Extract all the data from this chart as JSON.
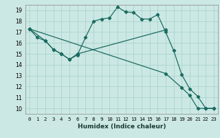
{
  "xlabel": "Humidex (Indice chaleur)",
  "bg_color": "#cce8e4",
  "grid_color": "#aad4cc",
  "line_color": "#1a6b60",
  "xlim": [
    -0.5,
    23.5
  ],
  "ylim": [
    9.5,
    19.5
  ],
  "xticks": [
    0,
    1,
    2,
    3,
    4,
    5,
    6,
    7,
    8,
    9,
    10,
    11,
    12,
    13,
    14,
    15,
    16,
    17,
    18,
    19,
    20,
    21,
    22,
    23
  ],
  "yticks": [
    10,
    11,
    12,
    13,
    14,
    15,
    16,
    17,
    18,
    19
  ],
  "line1_x": [
    0,
    1,
    2,
    3,
    4,
    5,
    6,
    7,
    8,
    9,
    10,
    11,
    12,
    13,
    14,
    15,
    16,
    17,
    18,
    19,
    20,
    21,
    22,
    23
  ],
  "line1_y": [
    17.3,
    16.5,
    16.2,
    15.4,
    15.0,
    14.5,
    14.9,
    16.5,
    18.0,
    18.2,
    18.3,
    19.3,
    18.85,
    18.8,
    18.2,
    18.2,
    18.6,
    17.0,
    15.3,
    13.1,
    11.8,
    11.1,
    10.0,
    10.0
  ],
  "line2_x": [
    0,
    2,
    3,
    4,
    5,
    6,
    17
  ],
  "line2_y": [
    17.3,
    16.2,
    15.4,
    15.0,
    14.5,
    15.0,
    17.2
  ],
  "line3_x": [
    0,
    17,
    19,
    20,
    21,
    22,
    23
  ],
  "line3_y": [
    17.3,
    13.2,
    11.9,
    11.2,
    10.0,
    10.0,
    10.0
  ]
}
